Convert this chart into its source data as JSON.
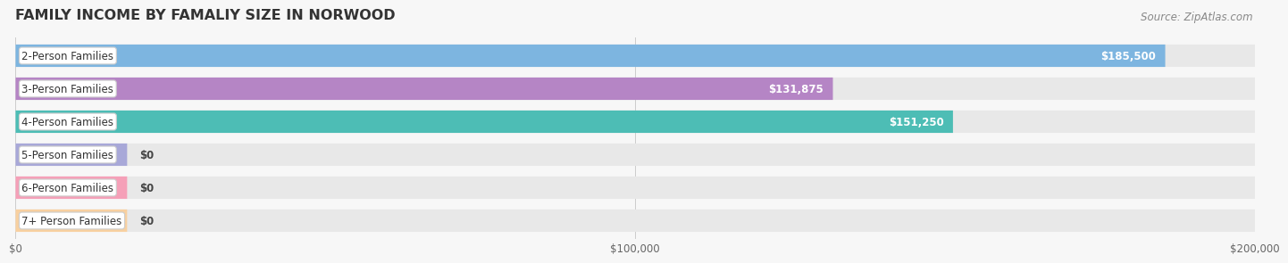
{
  "title": "FAMILY INCOME BY FAMALIY SIZE IN NORWOOD",
  "source": "Source: ZipAtlas.com",
  "categories": [
    "2-Person Families",
    "3-Person Families",
    "4-Person Families",
    "5-Person Families",
    "6-Person Families",
    "7+ Person Families"
  ],
  "values": [
    185500,
    131875,
    151250,
    0,
    0,
    0
  ],
  "bar_colors": [
    "#7db5e0",
    "#b585c5",
    "#4dbdb5",
    "#a8a8d8",
    "#f5a0b8",
    "#f8d0a0"
  ],
  "value_labels": [
    "$185,500",
    "$131,875",
    "$151,250",
    "$0",
    "$0",
    "$0"
  ],
  "xlim": [
    0,
    200000
  ],
  "xticks": [
    0,
    100000,
    200000
  ],
  "xtick_labels": [
    "$0",
    "$100,000",
    "$200,000"
  ],
  "background_color": "#f7f7f7",
  "bar_bg_color": "#e8e8e8",
  "title_fontsize": 11.5,
  "label_fontsize": 8.5,
  "value_fontsize": 8.5,
  "source_fontsize": 8.5,
  "bar_height": 0.68,
  "zero_bar_width": 18000
}
